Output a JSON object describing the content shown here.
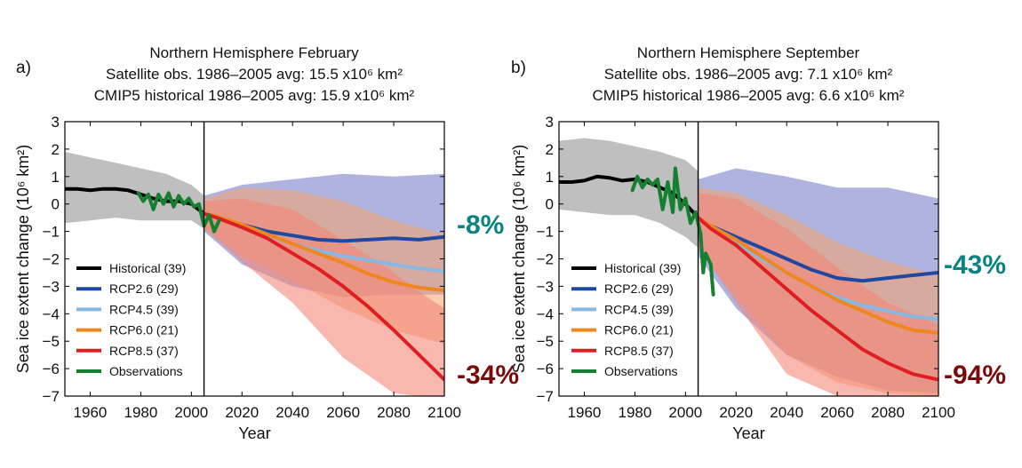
{
  "colors": {
    "historical": "#000000",
    "rcp26": "#1f48a0",
    "rcp45": "#86b8e2",
    "rcp60": "#f0861e",
    "rcp85": "#e01e21",
    "observations": "#158030",
    "pct_minus8": "#0b8282",
    "pct_minus43": "#0b8282",
    "pct_minus34": "#7a0a0a",
    "pct_minus94": "#7a0a0a",
    "hist_band": "#b4b4b4",
    "rcp26_band": "#6b77c4",
    "rcp60_band": "#f7a36a",
    "rcp85_band": "#f4877a"
  },
  "chart_data": [
    {
      "type": "line",
      "panel_label": "a)",
      "title_lines": [
        "Northern Hemisphere February",
        "Satellite obs. 1986–2005 avg: 15.5 x10⁶ km²",
        "CMIP5 historical 1986–2005 avg: 15.9 x10⁶ km²"
      ],
      "xlabel": "Year",
      "ylabel": "Sea ice extent change (10⁶ km²)",
      "xlim": [
        1950,
        2100
      ],
      "ylim": [
        -7,
        3
      ],
      "xticks": [
        1960,
        1980,
        2000,
        2020,
        2040,
        2060,
        2080,
        2100
      ],
      "yticks": [
        3,
        2,
        1,
        0,
        -1,
        -2,
        -3,
        -4,
        -5,
        -6,
        -7
      ],
      "vline_x": 2005,
      "legend_position": "lower-left",
      "legend": [
        "Historical (39)",
        "RCP2.6 (29)",
        "RCP4.5 (39)",
        "RCP6.0 (21)",
        "RCP8.5 (37)",
        "Observations"
      ],
      "annotations": [
        {
          "text": "-8%",
          "color_key": "pct_minus8",
          "anchor_y": -1.2
        },
        {
          "text": "-34%",
          "color_key": "pct_minus34",
          "anchor_y": -6.3
        }
      ],
      "series": [
        {
          "name": "Historical (39)",
          "color_key": "historical",
          "x": [
            1950,
            1955,
            1960,
            1965,
            1970,
            1975,
            1980,
            1985,
            1990,
            1995,
            2000,
            2005
          ],
          "values": [
            0.55,
            0.55,
            0.5,
            0.55,
            0.55,
            0.5,
            0.35,
            0.2,
            0.1,
            0.1,
            0.0,
            -0.35
          ]
        },
        {
          "name": "RCP2.6 (29)",
          "color_key": "rcp26",
          "x": [
            2005,
            2010,
            2020,
            2030,
            2040,
            2050,
            2060,
            2070,
            2080,
            2090,
            2100
          ],
          "values": [
            -0.35,
            -0.5,
            -0.75,
            -1.0,
            -1.15,
            -1.3,
            -1.35,
            -1.3,
            -1.25,
            -1.3,
            -1.2
          ]
        },
        {
          "name": "RCP4.5 (39)",
          "color_key": "rcp45",
          "x": [
            2005,
            2010,
            2020,
            2030,
            2040,
            2050,
            2060,
            2070,
            2080,
            2090,
            2100
          ],
          "values": [
            -0.35,
            -0.5,
            -0.85,
            -1.15,
            -1.45,
            -1.7,
            -1.9,
            -2.05,
            -2.2,
            -2.35,
            -2.45
          ]
        },
        {
          "name": "RCP6.0 (21)",
          "color_key": "rcp60",
          "x": [
            2005,
            2010,
            2020,
            2030,
            2040,
            2050,
            2060,
            2070,
            2080,
            2090,
            2100
          ],
          "values": [
            -0.35,
            -0.45,
            -0.75,
            -1.1,
            -1.45,
            -1.8,
            -2.15,
            -2.55,
            -2.85,
            -3.05,
            -3.15
          ]
        },
        {
          "name": "RCP8.5 (37)",
          "color_key": "rcp85",
          "x": [
            2005,
            2010,
            2020,
            2030,
            2040,
            2050,
            2060,
            2070,
            2080,
            2090,
            2100
          ],
          "values": [
            -0.35,
            -0.5,
            -0.85,
            -1.25,
            -1.8,
            -2.35,
            -3.0,
            -3.75,
            -4.6,
            -5.5,
            -6.4
          ]
        },
        {
          "name": "Observations",
          "color_key": "observations",
          "x": [
            1979,
            1981,
            1983,
            1985,
            1987,
            1989,
            1991,
            1993,
            1995,
            1997,
            1999,
            2001,
            2003,
            2005,
            2007,
            2009,
            2011
          ],
          "values": [
            0.4,
            0.1,
            0.35,
            -0.2,
            0.35,
            0.0,
            0.4,
            -0.1,
            0.3,
            0.0,
            0.2,
            -0.1,
            0.0,
            -0.8,
            -0.4,
            -1.0,
            -0.6
          ]
        }
      ],
      "bands": [
        {
          "color_key": "hist_band",
          "x": [
            1950,
            1960,
            1970,
            1980,
            1990,
            2000,
            2005
          ],
          "upper": [
            1.9,
            1.7,
            1.5,
            1.3,
            1.1,
            0.7,
            0.3
          ],
          "lower": [
            -0.7,
            -0.6,
            -0.5,
            -0.6,
            -0.6,
            -0.6,
            -0.9
          ]
        },
        {
          "color_key": "rcp26_band",
          "x": [
            2005,
            2020,
            2040,
            2060,
            2080,
            2100
          ],
          "upper": [
            0.3,
            0.7,
            0.9,
            1.1,
            1.0,
            1.1
          ],
          "lower": [
            -1.0,
            -2.2,
            -3.0,
            -3.4,
            -3.3,
            -3.3
          ]
        },
        {
          "color_key": "rcp60_band",
          "x": [
            2005,
            2020,
            2040,
            2060,
            2080,
            2100
          ],
          "upper": [
            0.2,
            0.6,
            0.5,
            0.1,
            -0.6,
            -1.1
          ],
          "lower": [
            -0.9,
            -1.9,
            -2.8,
            -3.8,
            -4.6,
            -5.1
          ]
        },
        {
          "color_key": "rcp85_band",
          "x": [
            2005,
            2020,
            2040,
            2060,
            2080,
            2090,
            2100
          ],
          "upper": [
            0.1,
            0.2,
            -0.2,
            -1.3,
            -2.5,
            -3.2,
            -3.8
          ],
          "lower": [
            -0.9,
            -2.1,
            -3.6,
            -5.6,
            -6.9,
            -7.0,
            -7.0
          ]
        }
      ]
    },
    {
      "type": "line",
      "panel_label": "b)",
      "title_lines": [
        "Northern Hemisphere September",
        "Satellite obs. 1986–2005 avg: 7.1 x10⁶ km²",
        "CMIP5 historical 1986–2005 avg: 6.6 x10⁶ km²"
      ],
      "xlabel": "Year",
      "ylabel": "Sea ice extent change (10⁶ km²)",
      "xlim": [
        1950,
        2100
      ],
      "ylim": [
        -7,
        3
      ],
      "xticks": [
        1960,
        1980,
        2000,
        2020,
        2040,
        2060,
        2080,
        2100
      ],
      "yticks": [
        3,
        2,
        1,
        0,
        -1,
        -2,
        -3,
        -4,
        -5,
        -6,
        -7
      ],
      "vline_x": 2005,
      "legend_position": "lower-left",
      "legend": [
        "Historical (39)",
        "RCP2.6 (29)",
        "RCP4.5 (39)",
        "RCP6.0 (21)",
        "RCP8.5 (37)",
        "Observations"
      ],
      "annotations": [
        {
          "text": "-43%",
          "color_key": "pct_minus43",
          "anchor_y": -2.2
        },
        {
          "text": "-94%",
          "color_key": "pct_minus94",
          "anchor_y": -6.3
        }
      ],
      "series": [
        {
          "name": "Historical (39)",
          "color_key": "historical",
          "x": [
            1950,
            1955,
            1960,
            1965,
            1970,
            1975,
            1980,
            1985,
            1990,
            1995,
            2000,
            2005
          ],
          "values": [
            0.8,
            0.8,
            0.85,
            1.0,
            0.95,
            0.85,
            0.9,
            0.8,
            0.6,
            0.4,
            0.0,
            -0.5
          ]
        },
        {
          "name": "RCP2.6 (29)",
          "color_key": "rcp26",
          "x": [
            2005,
            2010,
            2020,
            2030,
            2040,
            2050,
            2060,
            2070,
            2080,
            2090,
            2100
          ],
          "values": [
            -0.5,
            -0.8,
            -1.2,
            -1.6,
            -2.0,
            -2.4,
            -2.7,
            -2.8,
            -2.7,
            -2.6,
            -2.5
          ]
        },
        {
          "name": "RCP4.5 (39)",
          "color_key": "rcp45",
          "x": [
            2005,
            2010,
            2020,
            2030,
            2040,
            2050,
            2060,
            2070,
            2080,
            2090,
            2100
          ],
          "values": [
            -0.5,
            -0.8,
            -1.4,
            -2.0,
            -2.5,
            -3.0,
            -3.4,
            -3.7,
            -3.9,
            -4.1,
            -4.2
          ]
        },
        {
          "name": "RCP6.0 (21)",
          "color_key": "rcp60",
          "x": [
            2005,
            2010,
            2020,
            2030,
            2040,
            2050,
            2060,
            2070,
            2080,
            2090,
            2100
          ],
          "values": [
            -0.5,
            -0.8,
            -1.3,
            -1.9,
            -2.5,
            -3.0,
            -3.5,
            -3.9,
            -4.3,
            -4.6,
            -4.7
          ]
        },
        {
          "name": "RCP8.5 (37)",
          "color_key": "rcp85",
          "x": [
            2005,
            2010,
            2020,
            2030,
            2040,
            2050,
            2060,
            2070,
            2080,
            2090,
            2100
          ],
          "values": [
            -0.5,
            -0.9,
            -1.5,
            -2.3,
            -3.1,
            -3.9,
            -4.6,
            -5.3,
            -5.8,
            -6.2,
            -6.4
          ]
        },
        {
          "name": "Observations",
          "color_key": "observations",
          "x": [
            1979,
            1981,
            1983,
            1985,
            1987,
            1989,
            1991,
            1993,
            1995,
            1996,
            1998,
            2000,
            2002,
            2004,
            2006,
            2007,
            2008,
            2010,
            2011
          ],
          "values": [
            0.5,
            1.0,
            0.6,
            0.9,
            0.7,
            0.9,
            -0.2,
            0.8,
            -0.3,
            1.3,
            -0.2,
            0.2,
            -0.7,
            -0.3,
            -1.1,
            -2.5,
            -1.8,
            -2.2,
            -3.3
          ]
        }
      ],
      "bands": [
        {
          "color_key": "hist_band",
          "x": [
            1950,
            1960,
            1970,
            1980,
            1990,
            2000,
            2005
          ],
          "upper": [
            2.3,
            2.4,
            2.3,
            2.1,
            1.9,
            1.6,
            1.2
          ],
          "lower": [
            -0.2,
            -0.3,
            -0.4,
            -0.4,
            -0.7,
            -1.2,
            -1.6
          ]
        },
        {
          "color_key": "rcp26_band",
          "x": [
            2005,
            2020,
            2040,
            2060,
            2080,
            2100
          ],
          "upper": [
            0.9,
            1.3,
            1.0,
            0.6,
            0.6,
            0.2
          ],
          "lower": [
            -1.9,
            -3.8,
            -5.5,
            -6.3,
            -6.8,
            -6.9
          ]
        },
        {
          "color_key": "rcp60_band",
          "x": [
            2005,
            2020,
            2040,
            2060,
            2080,
            2100
          ],
          "upper": [
            0.6,
            0.4,
            -0.4,
            -1.4,
            -2.1,
            -2.6
          ],
          "lower": [
            -1.6,
            -3.4,
            -5.5,
            -6.5,
            -6.9,
            -7.0
          ]
        },
        {
          "color_key": "rcp85_band",
          "x": [
            2005,
            2020,
            2040,
            2060,
            2080,
            2100
          ],
          "upper": [
            0.4,
            0.2,
            -0.9,
            -2.3,
            -3.6,
            -4.4
          ],
          "lower": [
            -1.6,
            -3.6,
            -6.2,
            -7.0,
            -7.0,
            -7.0
          ]
        }
      ]
    }
  ]
}
